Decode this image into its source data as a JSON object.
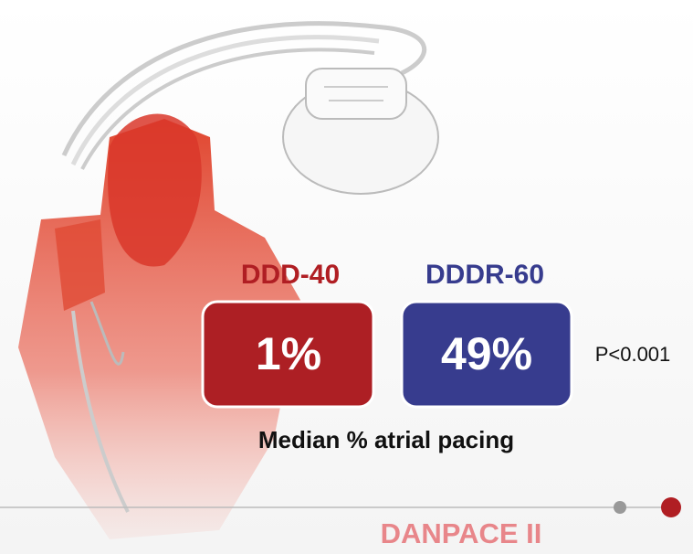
{
  "groups": [
    {
      "label": "DDD-40",
      "value": "1%"
    },
    {
      "label": "DDDR-60",
      "value": "49%"
    }
  ],
  "p_value": "P<0.001",
  "caption": "Median % atrial pacing",
  "footer": "DANPACE II"
}
